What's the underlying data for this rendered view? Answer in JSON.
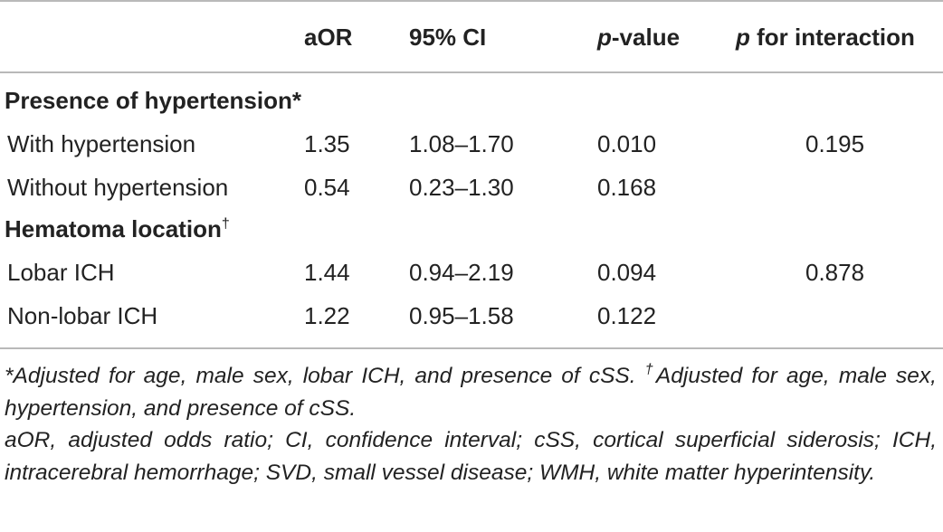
{
  "table": {
    "header": {
      "aor": "aOR",
      "ci": "95% CI",
      "pvalue_italic": "p",
      "pvalue_rest": "-value",
      "interaction_italic": "p",
      "interaction_rest": " for interaction"
    },
    "sections": [
      {
        "title": "Presence of hypertension*",
        "rows": [
          {
            "label": "With hypertension",
            "aor": "1.35",
            "ci": "1.08–1.70",
            "p": "0.010",
            "p_interaction": "0.195"
          },
          {
            "label": "Without hypertension",
            "aor": "0.54",
            "ci": "0.23–1.30",
            "p": "0.168",
            "p_interaction": ""
          }
        ]
      },
      {
        "title": "Hematoma location",
        "title_mark": "†",
        "rows": [
          {
            "label": "Lobar ICH",
            "aor": "1.44",
            "ci": "0.94–2.19",
            "p": "0.094",
            "p_interaction": "0.878"
          },
          {
            "label": "Non-lobar ICH",
            "aor": "1.22",
            "ci": "0.95–1.58",
            "p": "0.122",
            "p_interaction": ""
          }
        ]
      }
    ]
  },
  "footnotes": {
    "note1": "*Adjusted for age, male sex, lobar ICH, and presence of cSS. ",
    "note2_mark": "†",
    "note2": "Adjusted for age, male sex, hypertension, and presence of cSS.",
    "abbreviations": "aOR, adjusted odds ratio; CI, confidence interval; cSS, cortical superficial siderosis; ICH, intracerebral hemorrhage; SVD, small vessel disease; WMH, white matter hyperintensity."
  }
}
